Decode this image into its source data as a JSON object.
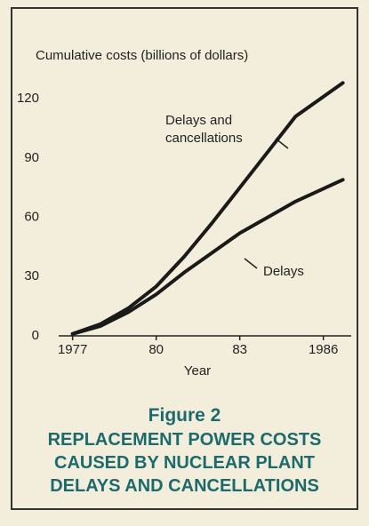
{
  "chart_data": {
    "type": "line",
    "y_axis_label": "Cumulative costs (billions of dollars)",
    "x_axis_label": "Year",
    "figure_label": "Figure 2",
    "title": "REPLACEMENT POWER COSTS CAUSED BY NUCLEAR PLANT DELAYS AND CANCELLATIONS",
    "x": [
      1977,
      1978,
      1979,
      1980,
      1981,
      1982,
      1983,
      1984,
      1985,
      1986.7
    ],
    "series": [
      {
        "name": "Delays and cancellations",
        "color": "#1a1a1a",
        "values": [
          1,
          6,
          14,
          25,
          40,
          57,
          75,
          93,
          111,
          128
        ]
      },
      {
        "name": "Delays",
        "color": "#1a1a1a",
        "values": [
          1,
          5,
          12,
          21,
          32,
          42,
          52,
          60,
          68,
          79
        ]
      }
    ],
    "xlim": [
      1976.5,
      1987
    ],
    "ylim": [
      0,
      125
    ],
    "xticks": [
      1977,
      {
        "value": 1980,
        "label": "80"
      },
      {
        "value": 1983,
        "label": "83"
      },
      1986
    ],
    "yticks": [
      0,
      30,
      60,
      90,
      120
    ],
    "grid": false
  }
}
